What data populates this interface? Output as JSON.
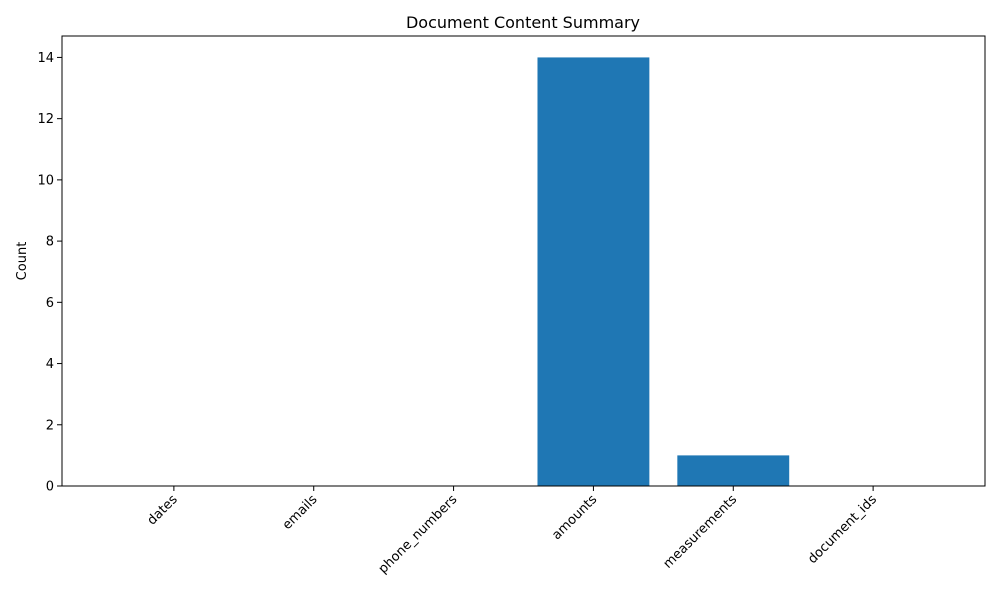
{
  "chart_data": {
    "type": "bar",
    "title": "Document Content Summary",
    "xlabel": "",
    "ylabel": "Count",
    "categories": [
      "dates",
      "emails",
      "phone_numbers",
      "amounts",
      "measurements",
      "document_ids"
    ],
    "values": [
      0,
      0,
      0,
      14,
      1,
      0
    ],
    "ylim": [
      0,
      14.7
    ],
    "yticks": [
      0,
      2,
      4,
      6,
      8,
      10,
      12,
      14
    ],
    "xtick_rotation_deg": 45,
    "grid": false,
    "bar_color": "#1f77b4"
  }
}
